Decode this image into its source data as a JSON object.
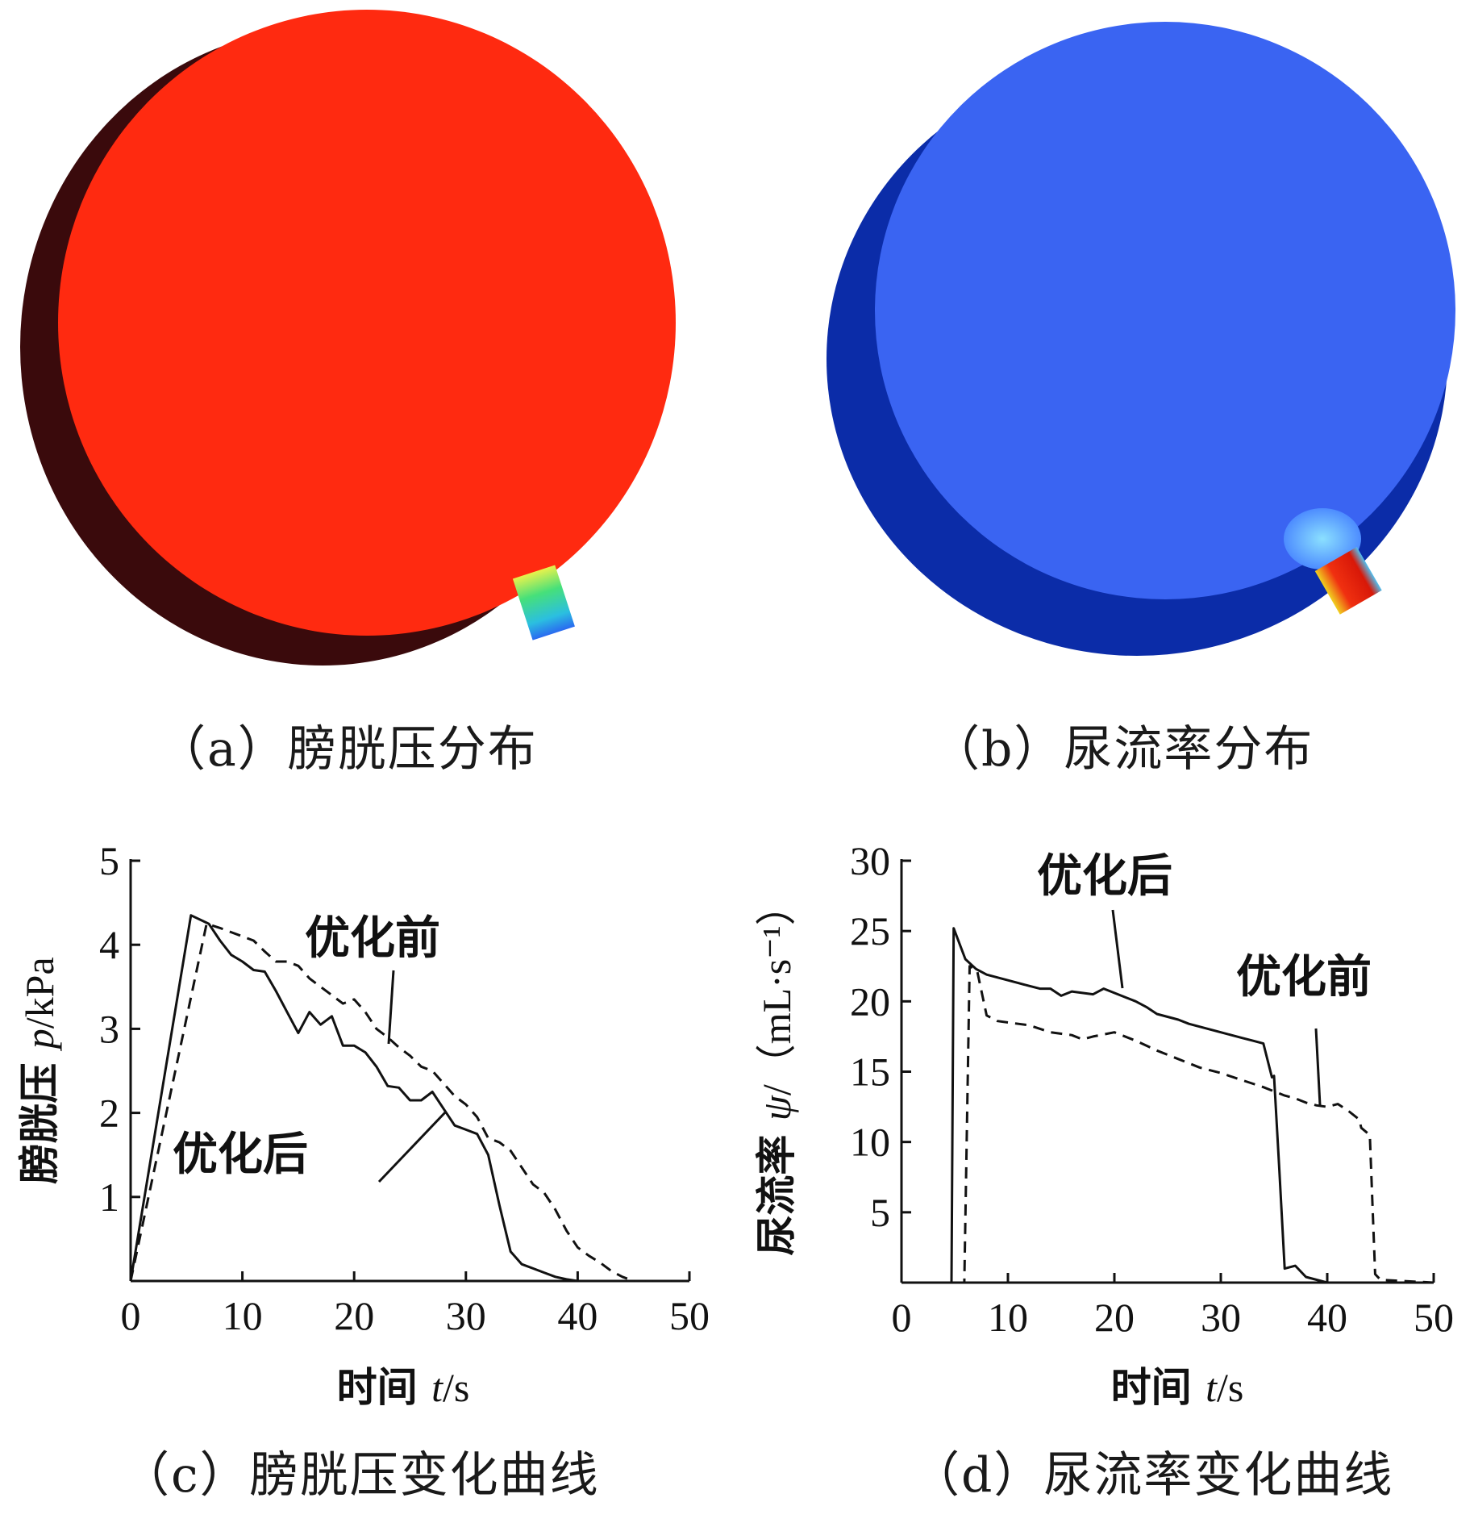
{
  "panels": {
    "a": {
      "caption": "（a）膀胱压分布",
      "colors": {
        "body": "#ff2a10",
        "shadow": "#3a0a0c"
      }
    },
    "b": {
      "caption": "（b）尿流率分布",
      "colors": {
        "body": "#3a64f2",
        "shadow": "#0b2ca8"
      }
    },
    "c": {
      "caption": "（c）膀胱压变化曲线"
    },
    "d": {
      "caption": "（d）尿流率变化曲线"
    }
  },
  "chart_data": [
    {
      "id": "c",
      "type": "line",
      "xlabel": {
        "prefix": "时间 ",
        "var": "t",
        "unit": "/s"
      },
      "ylabel": {
        "prefix": "膀胱压 ",
        "var": "p",
        "unit": "/kPa"
      },
      "xlim": [
        0,
        50
      ],
      "ylim": [
        0,
        5
      ],
      "xticks": [
        0,
        10,
        20,
        30,
        40,
        50
      ],
      "yticks": [
        1,
        2,
        3,
        4,
        5
      ],
      "grid": false,
      "annotations": [
        {
          "text": "优化前",
          "series": "优化前",
          "at": [
            22.5,
            2.9
          ]
        },
        {
          "text": "优化后",
          "series": "优化后",
          "at": [
            27.5,
            2.0
          ]
        }
      ],
      "series": [
        {
          "name": "优化后",
          "style": "solid",
          "x": [
            0,
            5.4,
            7,
            8,
            9,
            10,
            11,
            12,
            13,
            14,
            15,
            16,
            17,
            18,
            19,
            20,
            21,
            22,
            23,
            24,
            25,
            26,
            27,
            28,
            29,
            30,
            31,
            32,
            33,
            34,
            35,
            36,
            37,
            38,
            39,
            40,
            50
          ],
          "y": [
            0,
            4.35,
            4.25,
            4.05,
            3.88,
            3.8,
            3.7,
            3.68,
            3.45,
            3.2,
            2.95,
            3.2,
            3.05,
            3.15,
            2.8,
            2.8,
            2.72,
            2.55,
            2.32,
            2.3,
            2.15,
            2.15,
            2.25,
            2.05,
            1.85,
            1.8,
            1.75,
            1.5,
            0.9,
            0.35,
            0.2,
            0.15,
            0.1,
            0.05,
            0.02,
            0.0,
            0.0
          ]
        },
        {
          "name": "优化前",
          "style": "dashed",
          "x": [
            0,
            6.8,
            8,
            9,
            10,
            11,
            12,
            13,
            14,
            15,
            16,
            17,
            18,
            19,
            20,
            21,
            22,
            23,
            24,
            25,
            26,
            27,
            28,
            29,
            30,
            31,
            32,
            33,
            34,
            35,
            36,
            37,
            38,
            39,
            40,
            41,
            42,
            43,
            44,
            45,
            50
          ],
          "y": [
            0,
            4.25,
            4.2,
            4.15,
            4.1,
            4.05,
            3.92,
            3.8,
            3.8,
            3.75,
            3.6,
            3.5,
            3.4,
            3.3,
            3.35,
            3.2,
            3.0,
            2.9,
            2.78,
            2.68,
            2.55,
            2.5,
            2.35,
            2.2,
            2.1,
            1.95,
            1.7,
            1.65,
            1.55,
            1.35,
            1.15,
            1.05,
            0.85,
            0.6,
            0.4,
            0.3,
            0.22,
            0.12,
            0.05,
            0.0,
            0.0
          ]
        }
      ]
    },
    {
      "id": "d",
      "type": "line",
      "xlabel": {
        "prefix": "时间 ",
        "var": "t",
        "unit": "/s"
      },
      "ylabel": {
        "prefix": "尿流率 ",
        "var": "ψ",
        "unit": "/（mL·s⁻¹）"
      },
      "xlim": [
        0,
        50
      ],
      "ylim": [
        0,
        30
      ],
      "xticks": [
        0,
        10,
        20,
        30,
        40,
        50
      ],
      "yticks": [
        5,
        10,
        15,
        20,
        25,
        30
      ],
      "grid": false,
      "annotations": [
        {
          "text": "优化后",
          "series": "优化后",
          "at": [
            19.3,
            20.6
          ]
        },
        {
          "text": "优化前",
          "series": "优化前",
          "at": [
            40.8,
            12.8
          ]
        }
      ],
      "series": [
        {
          "name": "优化后",
          "style": "solid",
          "x": [
            0,
            4.7,
            4.9,
            6,
            7,
            8,
            9,
            10,
            11,
            12,
            13,
            14,
            15,
            16,
            17,
            18,
            19,
            20,
            21,
            22,
            23,
            24,
            25,
            26,
            27,
            28,
            29,
            30,
            31,
            32,
            33,
            34,
            34.8,
            35,
            35.5,
            36,
            37,
            38,
            39,
            40,
            50
          ],
          "y": [
            0,
            0,
            25.2,
            23,
            22.3,
            21.9,
            21.7,
            21.5,
            21.3,
            21.1,
            20.9,
            20.9,
            20.4,
            20.7,
            20.6,
            20.5,
            20.9,
            20.6,
            20.3,
            20.0,
            19.6,
            19.1,
            18.9,
            18.7,
            18.4,
            18.2,
            18.0,
            17.8,
            17.6,
            17.4,
            17.2,
            17.0,
            14.6,
            14.7,
            8.0,
            1.0,
            1.2,
            0.4,
            0.2,
            0.0,
            0.0
          ]
        },
        {
          "name": "优化前",
          "style": "dashed",
          "x": [
            0,
            5.9,
            6.4,
            7.1,
            8,
            9,
            10,
            12,
            14,
            16,
            17,
            18,
            20,
            22,
            24,
            26,
            28,
            30,
            32,
            34,
            35,
            36,
            37,
            38,
            39,
            40,
            41,
            42,
            43,
            43.2,
            44,
            44.5,
            45,
            50
          ],
          "y": [
            0,
            0,
            22.5,
            22.2,
            19.0,
            18.6,
            18.5,
            18.3,
            17.8,
            17.6,
            17.3,
            17.5,
            17.8,
            17.2,
            16.5,
            15.9,
            15.3,
            14.9,
            14.4,
            13.9,
            13.6,
            13.3,
            13.1,
            12.8,
            12.6,
            12.5,
            12.7,
            12.2,
            11.6,
            11.0,
            10.5,
            0.6,
            0.2,
            0.0
          ]
        }
      ]
    }
  ]
}
